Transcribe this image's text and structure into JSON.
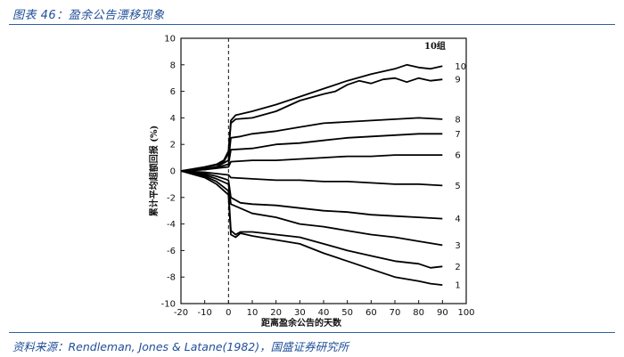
{
  "figure": {
    "title": "图表 46：盈余公告漂移现象",
    "source": "资料来源：Rendleman, Jones & Latane(1982)，国盛证券研究所"
  },
  "chart_data": {
    "type": "line",
    "title": "",
    "xlabel": "距离盈余公告的天数",
    "ylabel": "累计平均超额回报 (%)",
    "xlim": [
      -20,
      100
    ],
    "ylim": [
      -10,
      10
    ],
    "x_ticks": [
      -20,
      -10,
      0,
      10,
      20,
      30,
      40,
      50,
      60,
      70,
      80,
      90,
      100
    ],
    "y_ticks": [
      -10,
      -8,
      -6,
      -4,
      -2,
      0,
      2,
      4,
      6,
      8,
      10
    ],
    "vline_x": 0,
    "legend_title": "10组",
    "series": [
      {
        "name": "10",
        "points": [
          [
            -20,
            0.0
          ],
          [
            -15,
            0.15
          ],
          [
            -10,
            0.3
          ],
          [
            -5,
            0.5
          ],
          [
            -2,
            0.8
          ],
          [
            0,
            1.5
          ],
          [
            1,
            3.8
          ],
          [
            3,
            4.2
          ],
          [
            10,
            4.5
          ],
          [
            20,
            5.0
          ],
          [
            30,
            5.6
          ],
          [
            40,
            6.2
          ],
          [
            50,
            6.8
          ],
          [
            60,
            7.3
          ],
          [
            70,
            7.7
          ],
          [
            75,
            8.0
          ],
          [
            80,
            7.8
          ],
          [
            85,
            7.7
          ],
          [
            90,
            7.9
          ]
        ]
      },
      {
        "name": "9",
        "points": [
          [
            -20,
            0.0
          ],
          [
            -15,
            0.1
          ],
          [
            -10,
            0.25
          ],
          [
            -5,
            0.45
          ],
          [
            -2,
            0.7
          ],
          [
            0,
            1.3
          ],
          [
            1,
            3.6
          ],
          [
            3,
            3.9
          ],
          [
            10,
            4.0
          ],
          [
            20,
            4.5
          ],
          [
            30,
            5.3
          ],
          [
            40,
            5.8
          ],
          [
            45,
            6.0
          ],
          [
            50,
            6.5
          ],
          [
            55,
            6.8
          ],
          [
            60,
            6.6
          ],
          [
            65,
            6.9
          ],
          [
            70,
            7.0
          ],
          [
            75,
            6.7
          ],
          [
            80,
            7.0
          ],
          [
            85,
            6.8
          ],
          [
            90,
            6.9
          ]
        ]
      },
      {
        "name": "8",
        "points": [
          [
            -20,
            0.0
          ],
          [
            -10,
            0.15
          ],
          [
            -5,
            0.3
          ],
          [
            0,
            0.8
          ],
          [
            1,
            2.5
          ],
          [
            5,
            2.6
          ],
          [
            10,
            2.8
          ],
          [
            20,
            3.0
          ],
          [
            30,
            3.3
          ],
          [
            40,
            3.6
          ],
          [
            50,
            3.7
          ],
          [
            60,
            3.8
          ],
          [
            70,
            3.9
          ],
          [
            80,
            4.0
          ],
          [
            90,
            3.9
          ]
        ]
      },
      {
        "name": "7",
        "points": [
          [
            -20,
            0.0
          ],
          [
            -10,
            0.1
          ],
          [
            -5,
            0.25
          ],
          [
            0,
            0.5
          ],
          [
            1,
            1.6
          ],
          [
            10,
            1.7
          ],
          [
            20,
            2.0
          ],
          [
            30,
            2.1
          ],
          [
            40,
            2.3
          ],
          [
            50,
            2.5
          ],
          [
            60,
            2.6
          ],
          [
            70,
            2.7
          ],
          [
            80,
            2.8
          ],
          [
            90,
            2.8
          ]
        ]
      },
      {
        "name": "6",
        "points": [
          [
            -20,
            0.0
          ],
          [
            -10,
            0.1
          ],
          [
            -5,
            0.2
          ],
          [
            0,
            0.3
          ],
          [
            1,
            0.7
          ],
          [
            10,
            0.8
          ],
          [
            20,
            0.8
          ],
          [
            30,
            0.9
          ],
          [
            40,
            1.0
          ],
          [
            50,
            1.1
          ],
          [
            60,
            1.1
          ],
          [
            70,
            1.2
          ],
          [
            80,
            1.2
          ],
          [
            90,
            1.2
          ]
        ]
      },
      {
        "name": "5",
        "points": [
          [
            -20,
            0.0
          ],
          [
            -10,
            -0.1
          ],
          [
            -5,
            -0.2
          ],
          [
            0,
            -0.3
          ],
          [
            1,
            -0.5
          ],
          [
            10,
            -0.6
          ],
          [
            20,
            -0.7
          ],
          [
            30,
            -0.7
          ],
          [
            40,
            -0.8
          ],
          [
            50,
            -0.8
          ],
          [
            60,
            -0.9
          ],
          [
            70,
            -1.0
          ],
          [
            80,
            -1.0
          ],
          [
            90,
            -1.1
          ]
        ]
      },
      {
        "name": "4",
        "points": [
          [
            -20,
            0.0
          ],
          [
            -10,
            -0.2
          ],
          [
            -5,
            -0.4
          ],
          [
            0,
            -0.7
          ],
          [
            1,
            -2.0
          ],
          [
            5,
            -2.4
          ],
          [
            10,
            -2.5
          ],
          [
            20,
            -2.6
          ],
          [
            30,
            -2.8
          ],
          [
            40,
            -3.0
          ],
          [
            50,
            -3.1
          ],
          [
            60,
            -3.3
          ],
          [
            70,
            -3.4
          ],
          [
            80,
            -3.5
          ],
          [
            90,
            -3.6
          ]
        ]
      },
      {
        "name": "3",
        "points": [
          [
            -20,
            0.0
          ],
          [
            -10,
            -0.3
          ],
          [
            -5,
            -0.6
          ],
          [
            0,
            -1.0
          ],
          [
            1,
            -2.5
          ],
          [
            10,
            -3.2
          ],
          [
            20,
            -3.5
          ],
          [
            30,
            -4.0
          ],
          [
            40,
            -4.2
          ],
          [
            50,
            -4.5
          ],
          [
            60,
            -4.8
          ],
          [
            70,
            -5.0
          ],
          [
            80,
            -5.3
          ],
          [
            90,
            -5.6
          ]
        ]
      },
      {
        "name": "2",
        "points": [
          [
            -20,
            0.0
          ],
          [
            -10,
            -0.4
          ],
          [
            -5,
            -0.8
          ],
          [
            0,
            -1.5
          ],
          [
            1,
            -4.5
          ],
          [
            3,
            -4.8
          ],
          [
            5,
            -4.6
          ],
          [
            10,
            -4.6
          ],
          [
            20,
            -4.8
          ],
          [
            30,
            -5.0
          ],
          [
            40,
            -5.5
          ],
          [
            50,
            -6.0
          ],
          [
            60,
            -6.4
          ],
          [
            70,
            -6.8
          ],
          [
            80,
            -7.0
          ],
          [
            85,
            -7.3
          ],
          [
            90,
            -7.2
          ]
        ]
      },
      {
        "name": "1",
        "points": [
          [
            -20,
            0.0
          ],
          [
            -10,
            -0.5
          ],
          [
            -5,
            -1.0
          ],
          [
            0,
            -1.8
          ],
          [
            1,
            -4.8
          ],
          [
            3,
            -5.0
          ],
          [
            5,
            -4.7
          ],
          [
            10,
            -4.9
          ],
          [
            20,
            -5.2
          ],
          [
            30,
            -5.5
          ],
          [
            40,
            -6.2
          ],
          [
            50,
            -6.8
          ],
          [
            60,
            -7.4
          ],
          [
            70,
            -8.0
          ],
          [
            80,
            -8.3
          ],
          [
            85,
            -8.5
          ],
          [
            90,
            -8.6
          ]
        ]
      }
    ]
  }
}
